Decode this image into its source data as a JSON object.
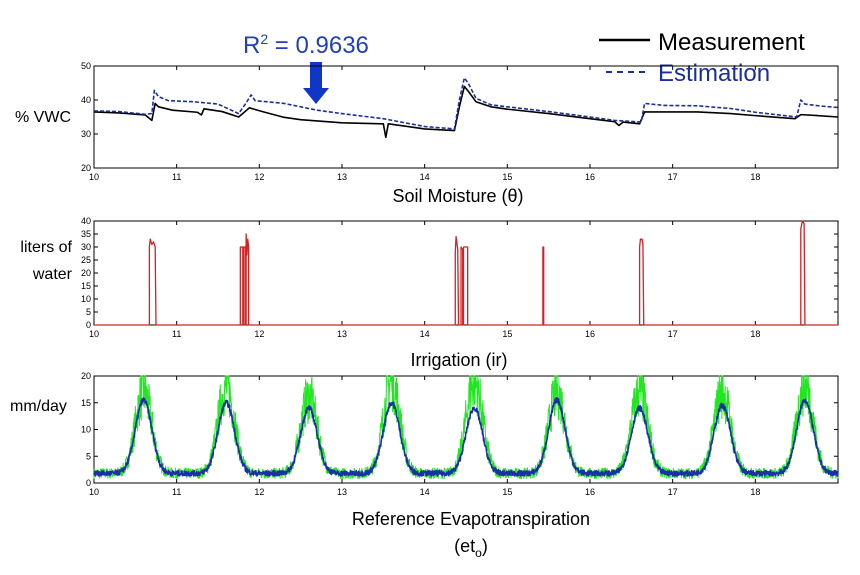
{
  "annotation": {
    "r2_label": "R",
    "r2_sup": "2",
    "r2_value": " = 0.9636",
    "color": "#1f3fbf",
    "arrow_color": "#1036c8"
  },
  "legend": {
    "measurement": "Measurement",
    "estimation": "Estimation",
    "measurement_color": "#000000",
    "estimation_color": "#1a2f9c"
  },
  "chart_data": [
    {
      "type": "line",
      "ylabel": "% VWC",
      "xlabel": "Soil Moisture (θ)",
      "xlim": [
        10,
        19
      ],
      "ylim": [
        20,
        50
      ],
      "xticks": [
        10,
        11,
        12,
        13,
        14,
        15,
        16,
        17,
        18
      ],
      "yticks": [
        20,
        30,
        40,
        50
      ],
      "series": [
        {
          "name": "Measurement",
          "color": "#000000",
          "dash": "solid",
          "points": [
            [
              10.0,
              36.5
            ],
            [
              10.3,
              36.2
            ],
            [
              10.62,
              35.6
            ],
            [
              10.7,
              34.0
            ],
            [
              10.74,
              39.0
            ],
            [
              10.78,
              38.0
            ],
            [
              10.95,
              37.0
            ],
            [
              11.25,
              36.4
            ],
            [
              11.3,
              35.6
            ],
            [
              11.33,
              37.4
            ],
            [
              11.55,
              36.6
            ],
            [
              11.75,
              35.0
            ],
            [
              11.88,
              37.7
            ],
            [
              12.05,
              36.5
            ],
            [
              12.3,
              34.9
            ],
            [
              12.5,
              34.2
            ],
            [
              13.0,
              33.3
            ],
            [
              13.5,
              33.0
            ],
            [
              13.53,
              29.0
            ],
            [
              13.56,
              33.0
            ],
            [
              14.0,
              31.5
            ],
            [
              14.36,
              31.0
            ],
            [
              14.42,
              38.0
            ],
            [
              14.48,
              44.0
            ],
            [
              14.53,
              42.5
            ],
            [
              14.62,
              39.5
            ],
            [
              14.8,
              38.0
            ],
            [
              15.0,
              37.3
            ],
            [
              15.5,
              36.0
            ],
            [
              16.0,
              34.5
            ],
            [
              16.3,
              33.6
            ],
            [
              16.35,
              32.5
            ],
            [
              16.4,
              33.5
            ],
            [
              16.6,
              33.0
            ],
            [
              16.66,
              36.5
            ],
            [
              16.9,
              36.5
            ],
            [
              17.3,
              36.5
            ],
            [
              17.7,
              36.0
            ],
            [
              18.0,
              35.4
            ],
            [
              18.48,
              34.5
            ],
            [
              18.55,
              35.7
            ],
            [
              18.7,
              35.5
            ],
            [
              19.0,
              35.0
            ]
          ]
        },
        {
          "name": "Estimation",
          "color": "#1a2f9c",
          "dash": "dashed",
          "points": [
            [
              10.0,
              36.8
            ],
            [
              10.3,
              36.6
            ],
            [
              10.62,
              35.8
            ],
            [
              10.7,
              36.0
            ],
            [
              10.73,
              42.8
            ],
            [
              10.78,
              41.0
            ],
            [
              10.9,
              39.8
            ],
            [
              11.2,
              39.5
            ],
            [
              11.5,
              38.8
            ],
            [
              11.75,
              36.0
            ],
            [
              11.85,
              39.5
            ],
            [
              11.9,
              41.5
            ],
            [
              11.95,
              39.8
            ],
            [
              12.3,
              39.0
            ],
            [
              12.7,
              37.0
            ],
            [
              13.0,
              36.0
            ],
            [
              13.5,
              34.5
            ],
            [
              14.0,
              32.2
            ],
            [
              14.36,
              31.5
            ],
            [
              14.42,
              40.0
            ],
            [
              14.48,
              46.5
            ],
            [
              14.53,
              44.8
            ],
            [
              14.62,
              40.5
            ],
            [
              14.8,
              38.6
            ],
            [
              15.0,
              38.0
            ],
            [
              15.5,
              36.6
            ],
            [
              16.0,
              35.0
            ],
            [
              16.3,
              34.0
            ],
            [
              16.62,
              33.5
            ],
            [
              16.66,
              39.0
            ],
            [
              16.9,
              38.4
            ],
            [
              17.3,
              38.3
            ],
            [
              17.7,
              37.5
            ],
            [
              18.0,
              36.4
            ],
            [
              18.5,
              35.0
            ],
            [
              18.55,
              40.0
            ],
            [
              18.6,
              38.8
            ],
            [
              18.8,
              38.2
            ],
            [
              19.0,
              37.8
            ]
          ]
        }
      ]
    },
    {
      "type": "line",
      "ylabel": "liters of water",
      "xlabel": "Irrigation (ir)",
      "xlim": [
        10,
        19
      ],
      "ylim": [
        0,
        40
      ],
      "xticks": [
        10,
        11,
        12,
        13,
        14,
        15,
        16,
        17,
        18
      ],
      "yticks": [
        0,
        5,
        10,
        15,
        20,
        25,
        30,
        35,
        40
      ],
      "series": [
        {
          "name": "",
          "color": "#d42020",
          "dash": "solid",
          "points": [
            [
              10.0,
              0
            ],
            [
              10.67,
              0
            ],
            [
              10.67,
              30
            ],
            [
              10.68,
              33
            ],
            [
              10.7,
              31
            ],
            [
              10.72,
              32
            ],
            [
              10.74,
              30
            ],
            [
              10.75,
              0
            ],
            [
              11.77,
              0
            ],
            [
              11.77,
              30
            ],
            [
              11.8,
              30
            ],
            [
              11.8,
              0
            ],
            [
              11.81,
              0
            ],
            [
              11.81,
              30
            ],
            [
              11.83,
              30
            ],
            [
              11.83,
              0
            ],
            [
              11.84,
              0
            ],
            [
              11.84,
              35
            ],
            [
              11.85,
              27
            ],
            [
              11.86,
              33
            ],
            [
              11.87,
              30
            ],
            [
              11.87,
              0
            ],
            [
              14.37,
              0
            ],
            [
              14.37,
              28
            ],
            [
              14.38,
              34
            ],
            [
              14.4,
              29
            ],
            [
              14.41,
              0
            ],
            [
              14.44,
              0
            ],
            [
              14.44,
              30
            ],
            [
              14.46,
              29
            ],
            [
              14.46,
              0
            ],
            [
              14.47,
              0
            ],
            [
              14.47,
              30
            ],
            [
              14.52,
              30
            ],
            [
              14.52,
              0
            ],
            [
              15.43,
              0
            ],
            [
              15.43,
              30
            ],
            [
              15.44,
              30
            ],
            [
              15.44,
              0
            ],
            [
              16.6,
              0
            ],
            [
              16.6,
              30
            ],
            [
              16.61,
              33
            ],
            [
              16.63,
              33
            ],
            [
              16.64,
              31
            ],
            [
              16.65,
              0
            ],
            [
              18.55,
              0
            ],
            [
              18.55,
              37
            ],
            [
              18.57,
              40
            ],
            [
              18.59,
              39
            ],
            [
              18.6,
              0
            ],
            [
              19.0,
              0
            ]
          ]
        }
      ]
    },
    {
      "type": "line",
      "ylabel": "mm/day",
      "xlabel": "Reference Evapotranspiration",
      "xlabel_line2": "(et",
      "xlabel_sub": "o",
      "xlabel_close": ")",
      "xlim": [
        10,
        19
      ],
      "ylim": [
        0,
        20
      ],
      "xticks": [
        10,
        11,
        12,
        13,
        14,
        15,
        16,
        17,
        18
      ],
      "yticks": [
        0,
        5,
        10,
        15,
        20
      ],
      "series": [
        {
          "name": "",
          "color": "#22e622",
          "dash": "solid",
          "daily_peaks": [
            17,
            18,
            16,
            19,
            19,
            17,
            17,
            17,
            18
          ],
          "peak_offset": 0.6,
          "base": 1.8
        },
        {
          "name": "",
          "color": "#1d2fa8",
          "dash": "solid",
          "daily_peaks": [
            15.5,
            15,
            14,
            15,
            14,
            15.5,
            14,
            14.5,
            15.5
          ],
          "peak_offset": 0.6,
          "base": 1.8
        }
      ]
    }
  ]
}
